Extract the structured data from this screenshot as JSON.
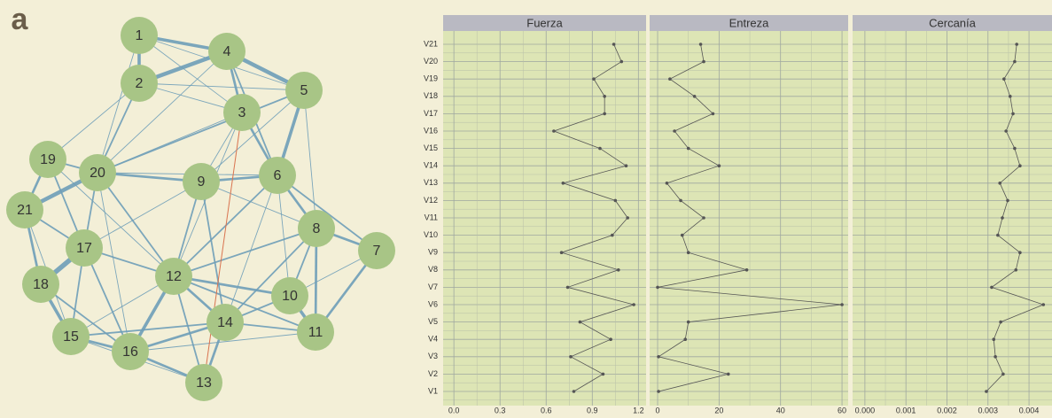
{
  "panel_label": "a",
  "network": {
    "nodes": [
      "1",
      "2",
      "3",
      "4",
      "5",
      "6",
      "7",
      "8",
      "9",
      "10",
      "11",
      "12",
      "13",
      "14",
      "15",
      "16",
      "17",
      "18",
      "19",
      "20",
      "21"
    ]
  },
  "chart_data": [
    {
      "type": "line",
      "orientation": "horizontal",
      "title": "Fuerza",
      "categories": [
        "V1",
        "V2",
        "V3",
        "V4",
        "V5",
        "V6",
        "V7",
        "V8",
        "V9",
        "V10",
        "V11",
        "V12",
        "V13",
        "V14",
        "V15",
        "V16",
        "V17",
        "V18",
        "V19",
        "V20",
        "V21"
      ],
      "values": [
        0.78,
        0.97,
        0.76,
        1.02,
        0.82,
        1.17,
        0.74,
        1.07,
        0.7,
        1.03,
        1.13,
        1.05,
        0.71,
        1.12,
        0.95,
        0.65,
        0.98,
        0.98,
        0.91,
        1.09,
        1.04
      ],
      "color": "#555555",
      "xlim": [
        -0.07,
        1.25
      ],
      "xticks": [
        {
          "value": 0,
          "label": "0.0"
        },
        0.3,
        0.6,
        0.9,
        1.2
      ],
      "grid": true
    },
    {
      "type": "line",
      "orientation": "horizontal",
      "title": "Entreza",
      "values": [
        0.3,
        23,
        0.3,
        9,
        10,
        60,
        0,
        29,
        10,
        8,
        15,
        7.5,
        3,
        20,
        10,
        5.5,
        18,
        12,
        4,
        15,
        14
      ],
      "color": "#555555",
      "xlim": [
        -2.6,
        62
      ],
      "xticks": [
        0,
        20,
        40,
        60
      ],
      "grid": true
    },
    {
      "type": "line",
      "orientation": "horizontal",
      "title": "Cercanía",
      "values": [
        0.00296,
        0.00337,
        0.00318,
        0.00314,
        0.00331,
        0.00435,
        0.00309,
        0.00368,
        0.00378,
        0.00324,
        0.00335,
        0.00348,
        0.00329,
        0.00378,
        0.00365,
        0.00344,
        0.00361,
        0.00354,
        0.00339,
        0.00365,
        0.0037
      ],
      "color": "#555555",
      "xlim": [
        -0.0003,
        0.00456
      ],
      "xticks": [
        {
          "value": 0,
          "label": "0.000"
        },
        0.001,
        0.002,
        0.003,
        0.004
      ],
      "grid": true
    }
  ]
}
